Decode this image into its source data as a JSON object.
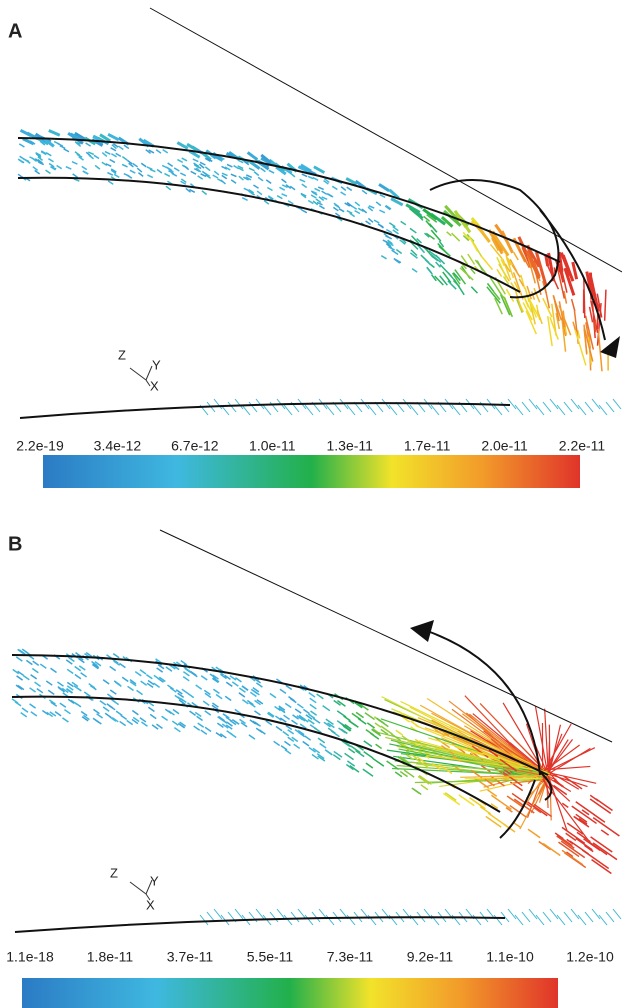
{
  "panels": [
    {
      "label": "A",
      "axes": [
        "Z",
        "Y",
        "X"
      ],
      "colorbar_labels": [
        "2.2e-19",
        "3.4e-12",
        "6.7e-12",
        "1.0e-11",
        "1.3e-11",
        "1.7e-11",
        "2.0e-11",
        "2.2e-11"
      ]
    },
    {
      "label": "B",
      "axes": [
        "Z",
        "Y",
        "X"
      ],
      "colorbar_labels": [
        "1.1e-18",
        "1.8e-11",
        "3.7e-11",
        "5.5e-11",
        "7.3e-11",
        "9.2e-11",
        "1.1e-10",
        "1.2e-10"
      ]
    }
  ]
}
